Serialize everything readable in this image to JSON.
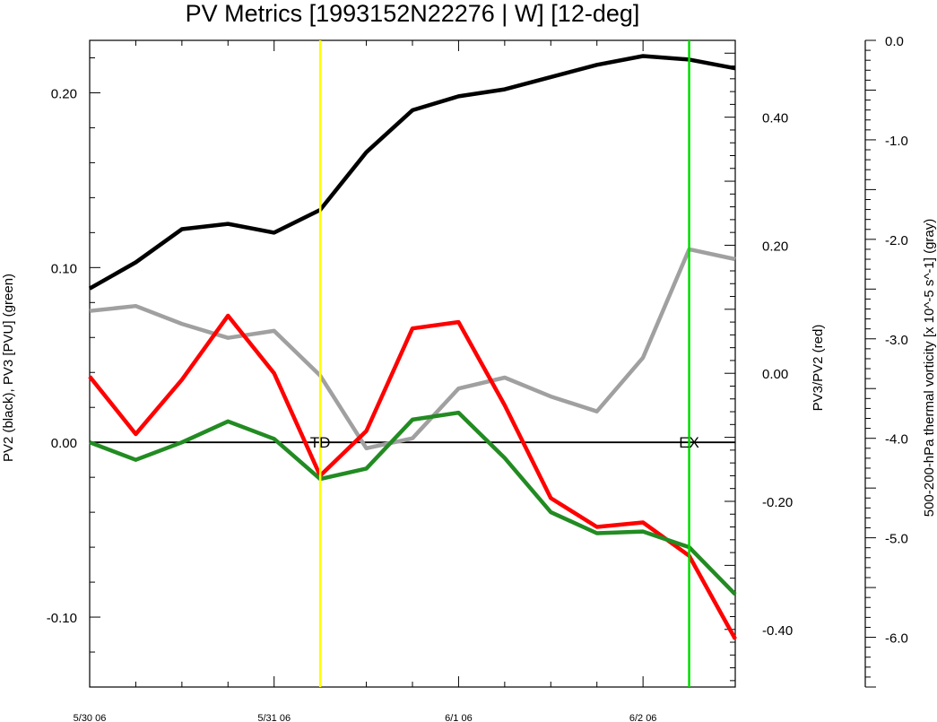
{
  "chart_data": {
    "type": "line",
    "title": "PV Metrics [1993152N22276 | W] [12-deg]",
    "x": [
      0,
      0.25,
      0.5,
      0.75,
      1.0,
      1.25,
      1.5,
      1.75,
      2.0,
      2.25,
      2.5,
      2.75,
      3.0,
      3.25,
      3.5
    ],
    "xlim": [
      0,
      3.5
    ],
    "x_tick_positions": [
      0,
      1,
      2,
      3
    ],
    "x_tick_labels": [
      "5/30 06",
      "5/31 06",
      "6/1 06",
      "6/2 06"
    ],
    "axes": {
      "left": {
        "label": "PV2 (black), PV3 [PVU] (green)",
        "range": [
          -0.14,
          0.23
        ],
        "ticks": [
          0.2,
          0.1,
          0.0,
          -0.1
        ],
        "tick_labels": [
          "0.20",
          "0.10",
          "0.00",
          "-0.10"
        ]
      },
      "right": {
        "label": "PV3/PV2 (red)",
        "range": [
          -0.49,
          0.52
        ],
        "ticks": [
          0.4,
          0.2,
          0.0,
          -0.2,
          -0.4
        ],
        "tick_labels": [
          "0.40",
          "0.20",
          "0.00",
          "-0.20",
          "-0.40"
        ]
      },
      "far_right": {
        "label": "500-200-hPa thermal vorticity [x 10^-5 s^-1] (gray)",
        "range": [
          -6.5,
          0.0
        ],
        "ticks": [
          0.0,
          -1.0,
          -2.0,
          -3.0,
          -4.0,
          -5.0,
          -6.0
        ],
        "tick_labels": [
          "0.0",
          "-1.0",
          "-2.0",
          "-3.0",
          "-4.0",
          "-5.0",
          "-6.0"
        ]
      }
    },
    "series": [
      {
        "name": "PV2",
        "axis": "left",
        "color": "#000000",
        "values": [
          0.088,
          0.103,
          0.122,
          0.125,
          0.12,
          0.133,
          0.166,
          0.19,
          0.198,
          0.202,
          0.209,
          0.216,
          0.221,
          0.219,
          0.214
        ]
      },
      {
        "name": "PV3",
        "axis": "left",
        "color": "#228b22",
        "values": [
          0.0,
          -0.01,
          0.0,
          0.012,
          0.002,
          -0.021,
          -0.015,
          0.013,
          0.017,
          -0.009,
          -0.04,
          -0.052,
          -0.051,
          -0.06,
          -0.087
        ]
      },
      {
        "name": "PV3/PV2",
        "axis": "right",
        "color": "#ff0000",
        "values": [
          -0.005,
          -0.095,
          -0.01,
          0.09,
          0.0,
          -0.16,
          -0.09,
          0.07,
          0.08,
          -0.05,
          -0.195,
          -0.24,
          -0.233,
          -0.285,
          -0.415
        ]
      },
      {
        "name": "thermal vorticity",
        "axis": "far_right",
        "color": "#a0a0a0",
        "values": [
          -2.72,
          -2.67,
          -2.85,
          -2.99,
          -2.92,
          -3.37,
          -4.1,
          -4.0,
          -3.5,
          -3.39,
          -3.58,
          -3.73,
          -3.19,
          -2.1,
          -2.2
        ]
      }
    ],
    "zero_line": 0.0,
    "events": [
      {
        "label": "TD",
        "x": 1.25,
        "color": "#ffff00"
      },
      {
        "label": "EX",
        "x": 3.25,
        "color": "#00dd00"
      }
    ]
  }
}
